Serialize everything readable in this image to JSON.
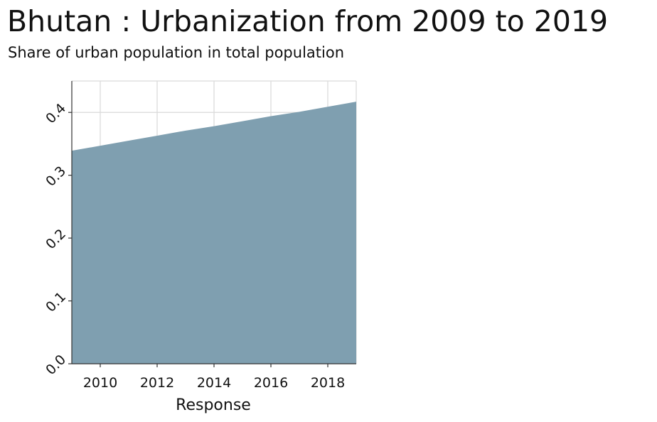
{
  "chart_data": {
    "type": "area",
    "title": "Bhutan : Urbanization from 2009 to 2019",
    "subtitle": "Share of urban population in total population",
    "xlabel": "Response",
    "ylabel": "",
    "x": [
      2009,
      2010,
      2011,
      2012,
      2013,
      2014,
      2015,
      2016,
      2017,
      2018,
      2019
    ],
    "series": [
      {
        "values": [
          0.339,
          0.347,
          0.355,
          0.363,
          0.371,
          0.378,
          0.386,
          0.394,
          0.401,
          0.409,
          0.417
        ]
      }
    ],
    "xlim": [
      2009,
      2019
    ],
    "ylim": [
      0,
      0.45
    ],
    "x_ticks": [
      2010,
      2012,
      2014,
      2016,
      2018
    ],
    "y_ticks": [
      0.0,
      0.1,
      0.2,
      0.3,
      0.4
    ],
    "y_tick_labels": [
      "0.0",
      "0.1",
      "0.2",
      "0.3",
      "0.4"
    ],
    "grid": true,
    "fill_color": "#7f9fb0",
    "grid_color": "#d9d9d9",
    "axis_color": "#333333"
  }
}
